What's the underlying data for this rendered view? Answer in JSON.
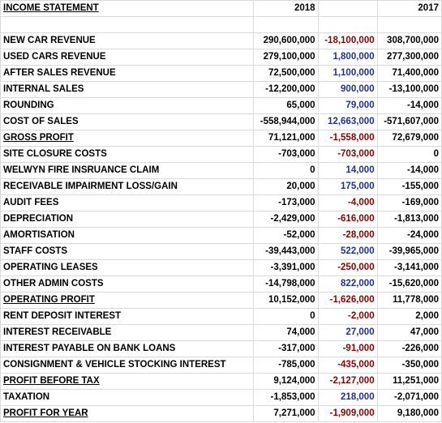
{
  "header": {
    "title": "INCOME STATEMENT",
    "col_2018": "2018",
    "col_diff": "",
    "col_2017": "2017"
  },
  "rows": [
    {
      "label": "",
      "v2018": "",
      "diff": "",
      "v2017": "",
      "sign": ""
    },
    {
      "label": "NEW CAR REVENUE",
      "v2018": "290,600,000",
      "diff": "-18,100,000",
      "v2017": "308,700,000",
      "sign": "neg"
    },
    {
      "label": "USED CARS REVENUE",
      "v2018": "279,100,000",
      "diff": "1,800,000",
      "v2017": "277,300,000",
      "sign": "pos"
    },
    {
      "label": "AFTER SALES REVENUE",
      "v2018": "72,500,000",
      "diff": "1,100,000",
      "v2017": "71,400,000",
      "sign": "pos"
    },
    {
      "label": "INTERNAL SALES",
      "v2018": "-12,200,000",
      "diff": "900,000",
      "v2017": "-13,100,000",
      "sign": "pos"
    },
    {
      "label": "ROUNDING",
      "v2018": "65,000",
      "diff": "79,000",
      "v2017": "-14,000",
      "sign": "pos"
    },
    {
      "label": "COST OF SALES",
      "v2018": "-558,944,000",
      "diff": "12,663,000",
      "v2017": "-571,607,000",
      "sign": "pos"
    },
    {
      "label": "GROSS PROFIT",
      "v2018": "71,121,000",
      "diff": "-1,558,000",
      "v2017": "72,679,000",
      "sign": "neg",
      "underline": true
    },
    {
      "label": "SITE CLOSURE COSTS",
      "v2018": "-703,000",
      "diff": "-703,000",
      "v2017": "0",
      "sign": "neg"
    },
    {
      "label": "WELWYN FIRE INSRUANCE CLAIM",
      "v2018": "0",
      "diff": "14,000",
      "v2017": "-14,000",
      "sign": "pos"
    },
    {
      "label": "RECEIVABLE IMPAIRMENT LOSS/GAIN",
      "v2018": "20,000",
      "diff": "175,000",
      "v2017": "-155,000",
      "sign": "pos"
    },
    {
      "label": "AUDIT FEES",
      "v2018": "-173,000",
      "diff": "-4,000",
      "v2017": "-169,000",
      "sign": "neg"
    },
    {
      "label": "DEPRECIATION",
      "v2018": "-2,429,000",
      "diff": "-616,000",
      "v2017": "-1,813,000",
      "sign": "neg"
    },
    {
      "label": "AMORTISATION",
      "v2018": "-52,000",
      "diff": "-28,000",
      "v2017": "-24,000",
      "sign": "neg"
    },
    {
      "label": "STAFF COSTS",
      "v2018": "-39,443,000",
      "diff": "522,000",
      "v2017": "-39,965,000",
      "sign": "pos"
    },
    {
      "label": "OPERATING LEASES",
      "v2018": "-3,391,000",
      "diff": "-250,000",
      "v2017": "-3,141,000",
      "sign": "neg"
    },
    {
      "label": "OTHER ADMIN COSTS",
      "v2018": "-14,798,000",
      "diff": "822,000",
      "v2017": "-15,620,000",
      "sign": "pos"
    },
    {
      "label": "OPERATING PROFIT",
      "v2018": "10,152,000",
      "diff": "-1,626,000",
      "v2017": "11,778,000",
      "sign": "neg",
      "underline": true
    },
    {
      "label": "RENT DEPOSIT INTEREST",
      "v2018": "0",
      "diff": "-2,000",
      "v2017": "2,000",
      "sign": "neg"
    },
    {
      "label": "INTEREST RECEIVABLE",
      "v2018": "74,000",
      "diff": "27,000",
      "v2017": "47,000",
      "sign": "pos"
    },
    {
      "label": "INTEREST PAYABLE ON BANK LOANS",
      "v2018": "-317,000",
      "diff": "-91,000",
      "v2017": "-226,000",
      "sign": "neg"
    },
    {
      "label": "CONSIGNMENT & VEHICLE STOCKING INTEREST",
      "v2018": "-785,000",
      "diff": "-435,000",
      "v2017": "-350,000",
      "sign": "neg"
    },
    {
      "label": "PROFIT BEFORE TAX",
      "v2018": "9,124,000",
      "diff": "-2,127,000",
      "v2017": "11,251,000",
      "sign": "neg",
      "underline": true
    },
    {
      "label": "TAXATION",
      "v2018": "-1,853,000",
      "diff": "218,000",
      "v2017": "-2,071,000",
      "sign": "pos"
    },
    {
      "label": "PROFIT FOR YEAR",
      "v2018": "7,271,000",
      "diff": "-1,909,000",
      "v2017": "9,180,000",
      "sign": "neg",
      "underline": true
    }
  ],
  "colors": {
    "negative_diff": "#8b0000",
    "positive_diff": "#1f2f9a",
    "grid": "#d9d9d9"
  }
}
